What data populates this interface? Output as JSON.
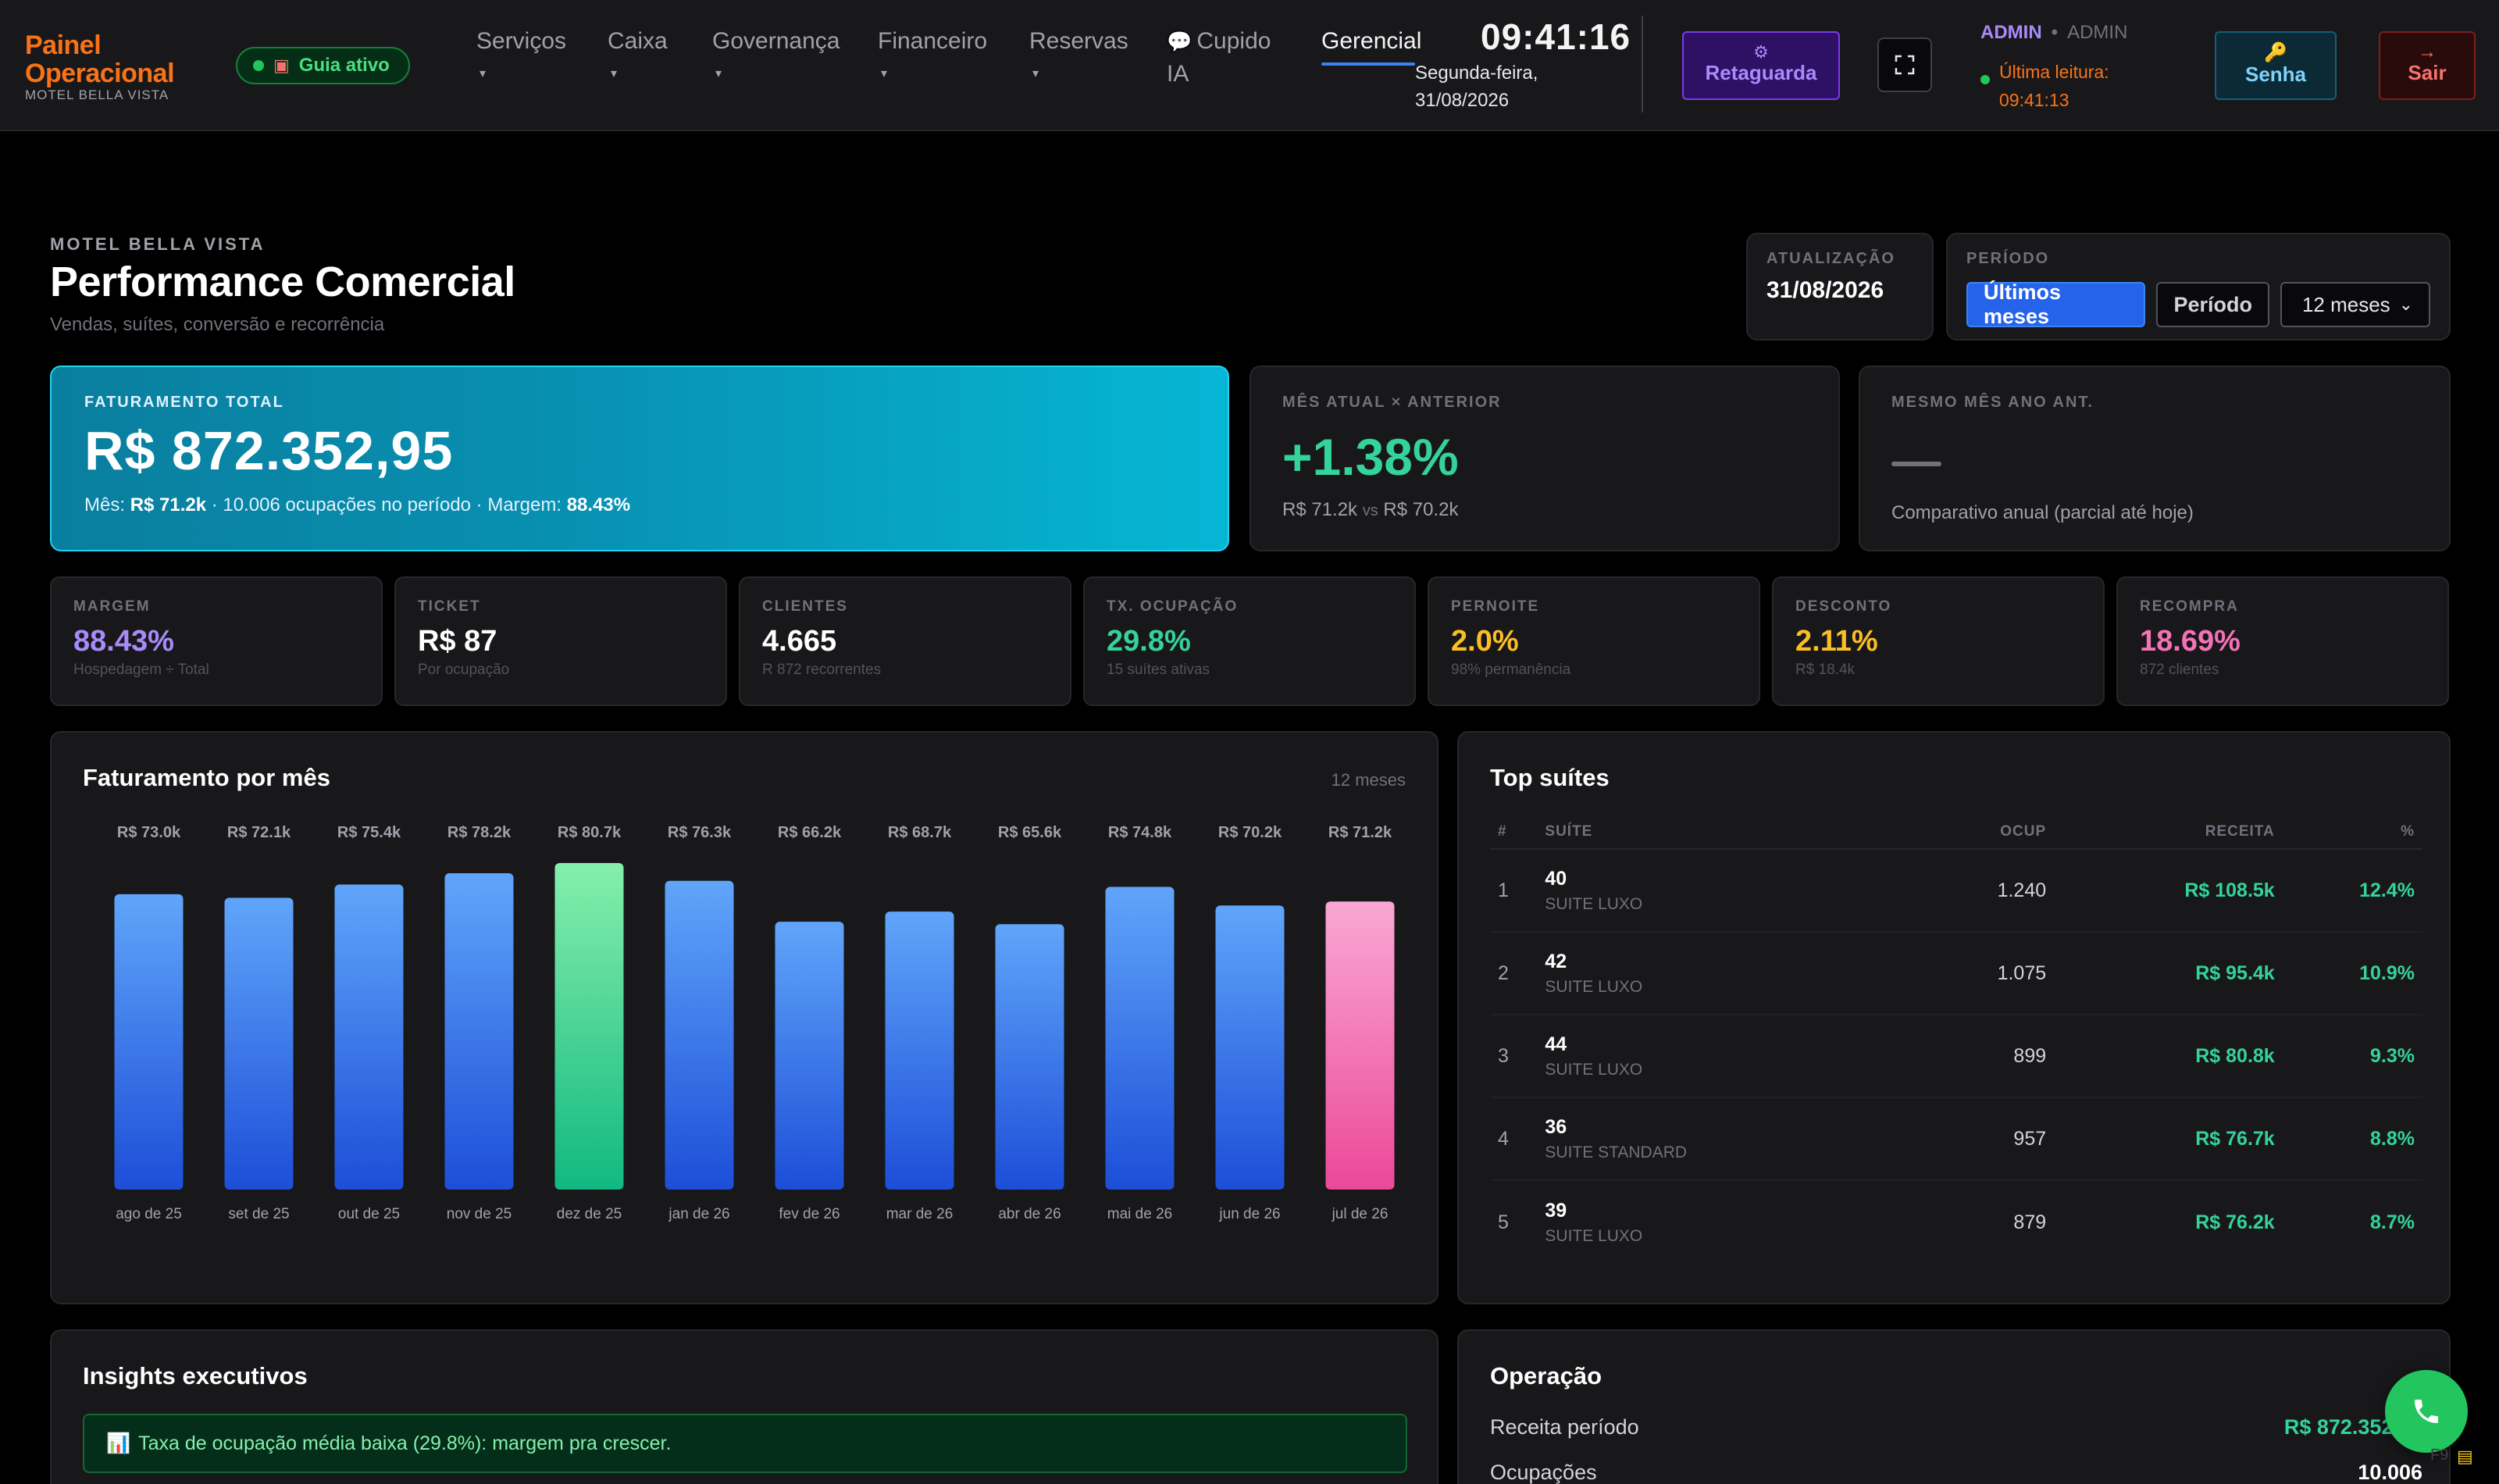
{
  "brand": {
    "line1": "Painel",
    "line2": "Operacional",
    "subtitle": "MOTEL BELLA VISTA"
  },
  "guide": {
    "label": "Guia ativo",
    "icon": "guide-icon"
  },
  "nav": [
    {
      "label": "Serviços",
      "caret": "▾"
    },
    {
      "label": "Caixa",
      "caret": "▾"
    },
    {
      "label": "Governança",
      "caret": "▾"
    },
    {
      "label": "Financeiro",
      "caret": "▾"
    },
    {
      "label": "Reservas",
      "caret": "▾"
    },
    {
      "label": "Cupido",
      "label2": "IA",
      "icon": "chat-icon"
    },
    {
      "label": "Gerencial",
      "active": true
    }
  ],
  "clock": {
    "time": "09:41:16",
    "date": "Segunda-feira, 31/08/2026"
  },
  "buttons": {
    "retaguarda": "Retaguarda",
    "senha": "Senha",
    "sair": "Sair"
  },
  "user": {
    "name": "ADMIN",
    "role": "ADMIN",
    "reading": "Última leitura: 09:41:13"
  },
  "header": {
    "eyebrow": "MOTEL BELLA VISTA",
    "title": "Performance Comercial",
    "subtitle": "Vendas, suítes, conversão e recorrência",
    "update_label": "ATUALIZAÇÃO",
    "update_value": "31/08/2026",
    "period_label": "PERÍODO",
    "period_options": [
      "Últimos meses",
      "Período"
    ],
    "period_active": "Últimos meses",
    "period_select": "12 meses"
  },
  "hero": {
    "label": "FATURAMENTO TOTAL",
    "value": "R$ 872.352,95",
    "foot_prefix": "Mês:",
    "foot_month": "R$ 71.2k",
    "foot_mid": "· 10.006 ocupações no período · Margem:",
    "foot_margin": "88.43%"
  },
  "compare": {
    "label": "MÊS ATUAL × ANTERIOR",
    "value": "+1.38%",
    "current": "R$ 71.2k",
    "vs": "vs",
    "previous": "R$ 70.2k"
  },
  "yoy": {
    "label": "MESMO MÊS ANO ANT.",
    "value": "—",
    "note": "Comparativo anual (parcial até hoje)"
  },
  "kpis": [
    {
      "label": "MARGEM",
      "value": "88.43%",
      "hint": "Hospedagem ÷ Total",
      "color": "#a78bfa"
    },
    {
      "label": "TICKET",
      "value": "R$ 87",
      "hint": "Por ocupação",
      "color": "#ffffff"
    },
    {
      "label": "CLIENTES",
      "value": "4.665",
      "hint": "R 872 recorrentes",
      "color": "#ffffff"
    },
    {
      "label": "TX. OCUPAÇÃO",
      "value": "29.8%",
      "hint": "15 suítes ativas",
      "color": "#34d399"
    },
    {
      "label": "PERNOITE",
      "value": "2.0%",
      "hint": "98% permanência",
      "color": "#fbbf24"
    },
    {
      "label": "DESCONTO",
      "value": "2.11%",
      "hint": "R$ 18.4k",
      "color": "#fbbf24"
    },
    {
      "label": "RECOMPRA",
      "value": "18.69%",
      "hint": "872 clientes",
      "color": "#f472b6"
    }
  ],
  "chart_panel": {
    "title": "Faturamento por mês",
    "note": "12 meses"
  },
  "chart_data": {
    "type": "bar",
    "title": "Faturamento por mês",
    "categories": [
      "ago de 25",
      "set de 25",
      "out de 25",
      "nov de 25",
      "dez de 25",
      "jan de 26",
      "fev de 26",
      "mar de 26",
      "abr de 26",
      "mai de 26",
      "jun de 26",
      "jul de 26"
    ],
    "values": [
      73.0,
      72.1,
      75.4,
      78.2,
      80.7,
      76.3,
      66.2,
      68.7,
      65.6,
      74.8,
      70.2,
      71.2
    ],
    "value_labels": [
      "R$ 73.0k",
      "R$ 72.1k",
      "R$ 75.4k",
      "R$ 78.2k",
      "R$ 80.7k",
      "R$ 76.3k",
      "R$ 66.2k",
      "R$ 68.7k",
      "R$ 65.6k",
      "R$ 74.8k",
      "R$ 70.2k",
      "R$ 71.2k"
    ],
    "unit": "R$ mil",
    "highlight_max_index": 4,
    "highlight_current_index": 11,
    "colors": {
      "default_top": "#60a5fa",
      "default_bottom": "#1d4ed8",
      "max_top": "#86efac",
      "max_bottom": "#10b981",
      "current_top": "#f9a8d4",
      "current_bottom": "#ec4899"
    },
    "ylim": [
      0,
      80.7
    ],
    "grid": false,
    "legend": "none"
  },
  "suites": {
    "title": "Top suítes",
    "headers": [
      "#",
      "SUÍTE",
      "OCUP",
      "RECEITA",
      "%"
    ],
    "rows": [
      {
        "rank": "1",
        "suite": "40",
        "kind": "SUITE LUXO",
        "ocup": "1.240",
        "receita": "R$ 108.5k",
        "pct": "12.4%"
      },
      {
        "rank": "2",
        "suite": "42",
        "kind": "SUITE LUXO",
        "ocup": "1.075",
        "receita": "R$ 95.4k",
        "pct": "10.9%"
      },
      {
        "rank": "3",
        "suite": "44",
        "kind": "SUITE LUXO",
        "ocup": "899",
        "receita": "R$ 80.8k",
        "pct": "9.3%"
      },
      {
        "rank": "4",
        "suite": "36",
        "kind": "SUITE STANDARD",
        "ocup": "957",
        "receita": "R$ 76.7k",
        "pct": "8.8%"
      },
      {
        "rank": "5",
        "suite": "39",
        "kind": "SUITE LUXO",
        "ocup": "879",
        "receita": "R$ 76.2k",
        "pct": "8.7%"
      }
    ]
  },
  "insights": {
    "title": "Insights executivos",
    "items": [
      "Taxa de ocupação média baixa (29.8%): margem pra crescer."
    ],
    "icon": "chart-icon"
  },
  "operation": {
    "title": "Operação",
    "rows": [
      {
        "label": "Receita período",
        "value": "R$ 872.352,95",
        "color": "#34d399"
      },
      {
        "label": "Ocupações",
        "value": "10.006",
        "color": "#ffffff"
      }
    ]
  },
  "footer": {
    "shortcut": "F9"
  }
}
